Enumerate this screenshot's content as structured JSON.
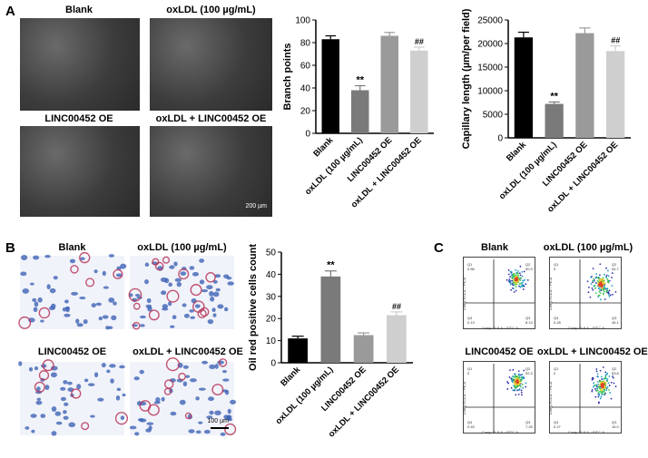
{
  "panelA": {
    "label": "A",
    "images": [
      {
        "title": "Blank"
      },
      {
        "title": "oxLDL (100 µg/mL)"
      },
      {
        "title": "LINC00452 OE"
      },
      {
        "title": "oxLDL + LINC00452 OE"
      }
    ],
    "scale_bar": "200 µm"
  },
  "panelB": {
    "label": "B",
    "images": [
      {
        "title": "Blank"
      },
      {
        "title": "oxLDL (100 µg/mL)"
      },
      {
        "title": "LINC00452 OE"
      },
      {
        "title": "oxLDL + LINC00452 OE"
      }
    ],
    "scale_bar": "100 µm"
  },
  "panelC": {
    "label": "C",
    "plots": [
      {
        "title": "Blank",
        "q1": "0.86",
        "q2": "90.9",
        "q3": "0.13",
        "q4": "8.13"
      },
      {
        "title": "oxLDL (100 µg/mL)",
        "q1": "0",
        "q2": "54.7",
        "q3": "0.28",
        "q4": "45.1"
      },
      {
        "title": "LINC00452 OE",
        "q1": "0",
        "q2": "92.3",
        "q3": "0.45",
        "q4": "7.25"
      },
      {
        "title": "oxLDL + LINC00452 OE",
        "q1": "0",
        "q2": "83.8",
        "q3": "0.27",
        "q4": "16.0"
      }
    ],
    "xlabel": "Comp-FL8-A :: FITC-A",
    "ylabel": "Comp-FL4-A :: PE-A"
  },
  "chart_data": [
    {
      "type": "bar",
      "ylabel": "Branch points",
      "categories": [
        "Blank",
        "oxLDL (100 µg/mL)",
        "LINC00452 OE",
        "oxLDL + LINC00452 OE"
      ],
      "values": [
        83,
        38,
        86,
        73
      ],
      "errors": [
        3,
        4,
        3,
        3
      ],
      "annotations": [
        "",
        "**",
        "",
        "##"
      ],
      "colors": [
        "#000000",
        "#7a7a7a",
        "#9a9a9a",
        "#cfcfcf"
      ],
      "ylim": [
        0,
        100
      ],
      "yticks": [
        0,
        20,
        40,
        60,
        80,
        100
      ]
    },
    {
      "type": "bar",
      "ylabel": "Capillary length (µm/per field)",
      "categories": [
        "Blank",
        "oxLDL (100 µg/mL)",
        "LINC00452 OE",
        "oxLDL + LINC00452 OE"
      ],
      "values": [
        21300,
        7200,
        22200,
        18400
      ],
      "errors": [
        1100,
        400,
        1100,
        1100
      ],
      "annotations": [
        "",
        "**",
        "",
        "##"
      ],
      "colors": [
        "#000000",
        "#7a7a7a",
        "#9a9a9a",
        "#cfcfcf"
      ],
      "ylim": [
        0,
        25000
      ],
      "yticks": [
        0,
        5000,
        10000,
        15000,
        20000,
        25000
      ]
    },
    {
      "type": "bar",
      "ylabel": "Oil red positive cells count",
      "categories": [
        "Blank",
        "oxLDL (100 µg/mL)",
        "LINC00452 OE",
        "oxLDL + LINC00452 OE"
      ],
      "values": [
        11,
        39,
        12.5,
        21.5
      ],
      "errors": [
        1,
        2.5,
        1,
        1.5
      ],
      "annotations": [
        "",
        "**",
        "",
        "##"
      ],
      "colors": [
        "#000000",
        "#7a7a7a",
        "#9a9a9a",
        "#cfcfcf"
      ],
      "ylim": [
        0,
        50
      ],
      "yticks": [
        0,
        10,
        20,
        30,
        40,
        50
      ]
    }
  ]
}
